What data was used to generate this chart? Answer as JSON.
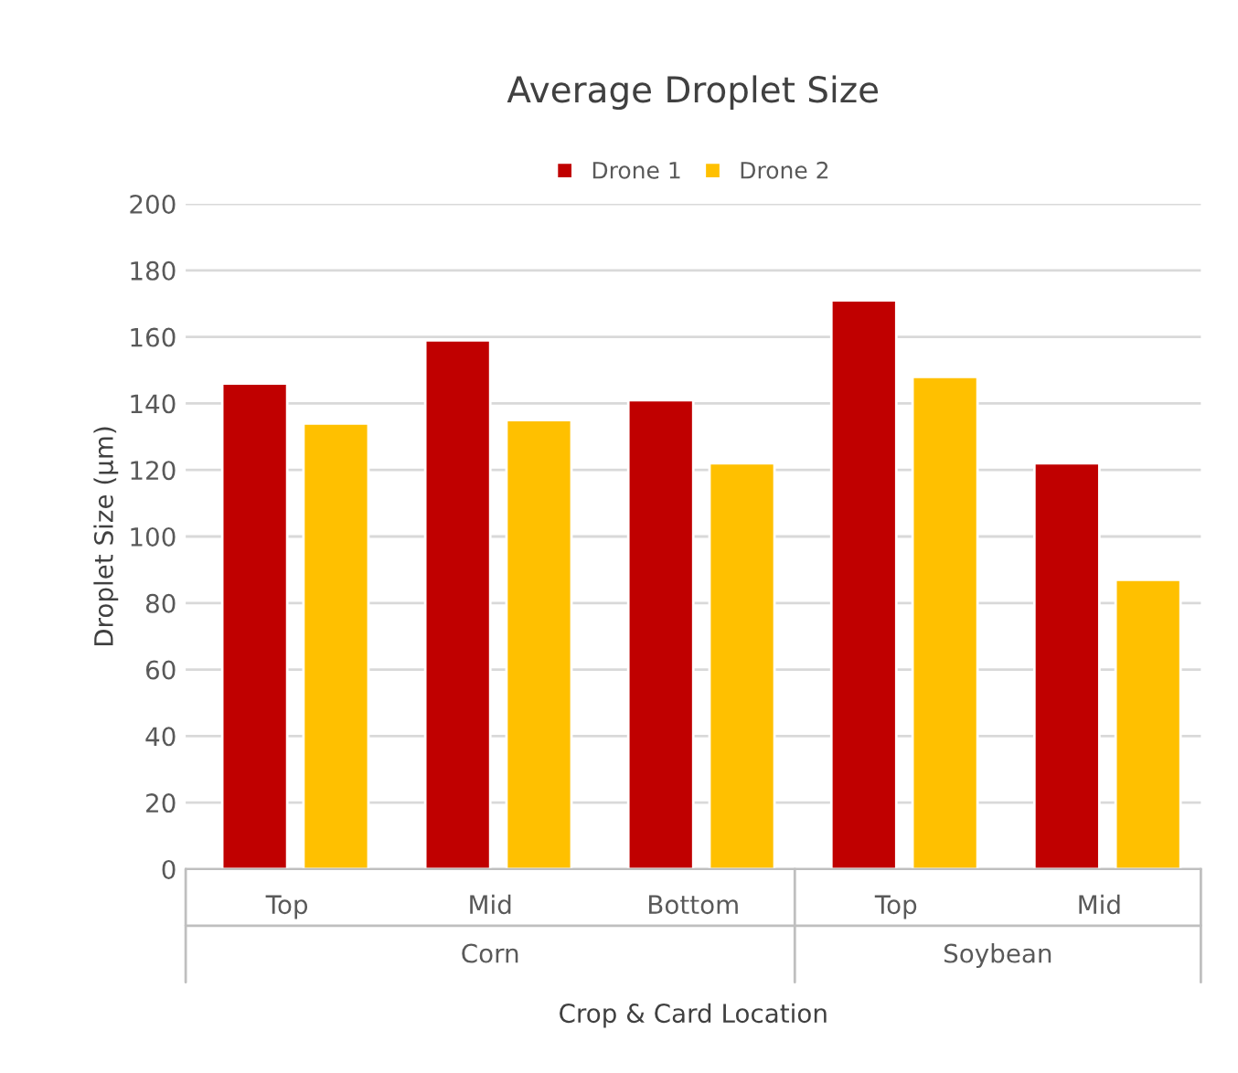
{
  "chart_data": {
    "type": "bar",
    "title": "Average Droplet Size",
    "xlabel": "Crop & Card Location",
    "ylabel": "Droplet Size (µm)",
    "categories": [
      "Top",
      "Mid",
      "Bottom",
      "Top",
      "Mid"
    ],
    "series": [
      {
        "name": "Drone 1",
        "color": "#c00000",
        "values": [
          146,
          159,
          141,
          171,
          122
        ]
      },
      {
        "name": "Drone 2",
        "color": "#ffc000",
        "values": [
          134,
          135,
          122,
          148,
          87
        ]
      }
    ],
    "annotations": [
      "Corn",
      "Soybean"
    ],
    "ylim": [
      0,
      200
    ],
    "yticks": [
      0,
      20,
      40,
      60,
      80,
      100,
      120,
      140,
      160,
      180,
      200
    ],
    "grid": "y",
    "legend": "top"
  }
}
